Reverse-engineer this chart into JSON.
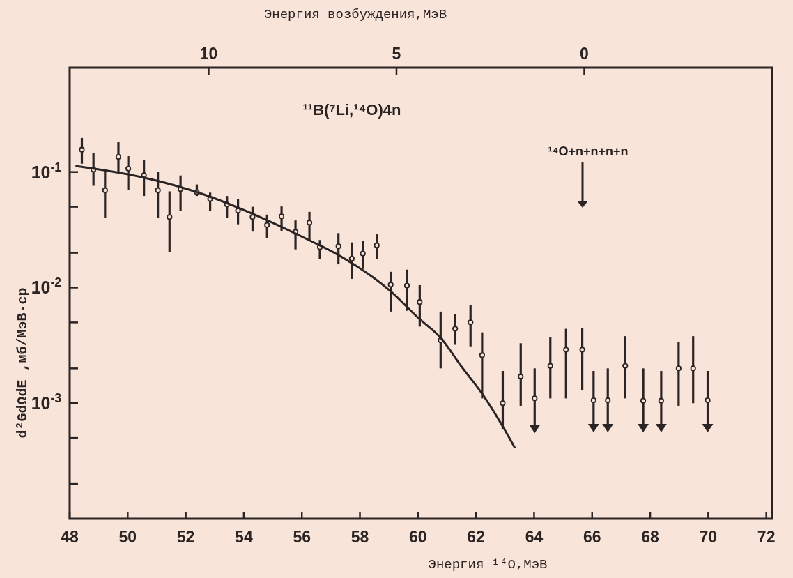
{
  "chart_data": {
    "type": "scatter",
    "xlabel": "Энергия ¹⁴O,МэВ",
    "x2label": "Энергия возбуждения,МэВ",
    "ylabel": "d²GdΩdE ,мб/МэВ·ср",
    "annotations": [
      "¹¹B(⁷Li,¹⁴O)4n",
      "¹⁴O+n+n+n+n"
    ],
    "log": "y",
    "xlim": [
      48,
      72.2
    ],
    "xticks": [
      48,
      50,
      52,
      54,
      56,
      58,
      60,
      62,
      64,
      66,
      68,
      70,
      72
    ],
    "x2lim": [
      13.7,
      -5.0
    ],
    "x2ticks": [
      10,
      5,
      0
    ],
    "ylim": [
      0.0001,
      0.8
    ],
    "yticks": [
      {
        "value": 0.1,
        "label": "10$^{-1}$"
      },
      {
        "value": 0.05,
        "label": null
      },
      {
        "value": 0.02,
        "label": null
      },
      {
        "value": 0.01,
        "label": "10$^{-2}$"
      },
      {
        "value": 0.005,
        "label": null
      },
      {
        "value": 0.002,
        "label": null
      },
      {
        "value": 0.001,
        "label": "10$^{-3}$"
      },
      {
        "value": 0.0005,
        "label": null
      },
      {
        "value": 0.0002,
        "label": null
      }
    ],
    "grid": false,
    "series": [
      {
        "color": "#2b2424",
        "marker": "circle",
        "x": [
          48.42,
          48.82,
          49.22,
          49.68,
          50.02,
          50.56,
          51.04,
          51.44,
          51.82,
          52.38,
          52.84,
          53.42,
          53.8,
          54.3,
          54.8,
          55.3,
          55.78,
          56.26,
          56.62,
          57.26,
          57.72,
          58.1,
          58.58,
          59.06,
          59.62,
          60.06,
          60.78,
          61.28,
          61.81,
          62.21,
          62.92,
          63.54,
          64.02,
          64.56,
          65.1,
          65.66,
          66.05,
          66.54,
          67.14,
          67.76,
          68.38,
          68.98,
          69.48,
          69.98
        ],
        "values": [
          0.156,
          0.105,
          0.0695,
          0.135,
          0.107,
          0.0937,
          0.0695,
          0.0408,
          0.0711,
          0.067,
          0.0583,
          0.0523,
          0.0463,
          0.0408,
          0.0348,
          0.0413,
          0.0303,
          0.0365,
          0.0224,
          0.0228,
          0.0178,
          0.0197,
          0.0232,
          0.0106,
          0.0104,
          0.0075,
          0.0035,
          0.0044,
          0.005,
          0.0026,
          0.001,
          0.0017,
          0.0011,
          0.0021,
          0.0029,
          0.0029,
          0.00106,
          0.00106,
          0.0021,
          0.00105,
          0.00105,
          0.002,
          0.002,
          0.00106
        ],
        "errors": [
          [
            0.118,
            0.197
          ],
          [
            0.076,
            0.147
          ],
          [
            0.04,
            0.103
          ],
          [
            0.1,
            0.181
          ],
          [
            0.07,
            0.137
          ],
          [
            0.062,
            0.126
          ],
          [
            0.04,
            0.0996
          ],
          [
            0.0204,
            0.068
          ],
          [
            0.0459,
            0.0933
          ],
          [
            0.062,
            0.078
          ],
          [
            0.0459,
            0.0663
          ],
          [
            0.0403,
            0.062
          ],
          [
            0.0353,
            0.058
          ],
          [
            0.0305,
            0.05
          ],
          [
            0.027,
            0.0428
          ],
          [
            0.0307,
            0.0503
          ],
          [
            0.0214,
            0.0381
          ],
          [
            0.0258,
            0.0452
          ],
          [
            0.0176,
            0.0258
          ],
          [
            0.0159,
            0.0296
          ],
          [
            0.0119,
            0.0246
          ],
          [
            0.0145,
            0.0255
          ],
          [
            0.0176,
            0.0289
          ],
          [
            0.0062,
            0.0137
          ],
          [
            0.0063,
            0.0143
          ],
          [
            0.0046,
            0.0105
          ],
          [
            0.002,
            0.0062
          ],
          [
            0.0032,
            0.0059
          ],
          [
            0.0031,
            0.0071
          ],
          [
            0.0011,
            0.0041
          ],
          [
            0.0006,
            0.0019
          ],
          [
            0.00095,
            0.0033
          ],
          [
            0.00059,
            0.002
          ],
          [
            0.0011,
            0.0037
          ],
          [
            0.0011,
            0.0044
          ],
          [
            0.0013,
            0.0045
          ],
          [
            0.0006,
            0.0019
          ],
          [
            0.0006,
            0.002
          ],
          [
            0.0011,
            0.0038
          ],
          [
            0.0006,
            0.002
          ],
          [
            0.0006,
            0.0019
          ],
          [
            0.00095,
            0.0034
          ],
          [
            0.001,
            0.0038
          ],
          [
            0.0006,
            0.0019
          ]
        ]
      },
      {
        "color": "#2b2424",
        "marker": "triangle",
        "x": [
          64.02,
          66.05,
          66.54,
          67.76,
          68.38,
          69.98
        ],
        "values": [
          0.00059,
          0.0006,
          0.0006,
          0.0006,
          0.0006,
          0.0006
        ]
      },
      {
        "type": "line",
        "color": "#2b2424",
        "line_style": "solid",
        "marker": "none",
        "x": [
          48.2,
          50.56,
          52.38,
          54.72,
          56.24,
          57.26,
          59.04,
          60.0,
          60.8,
          61.52,
          62.24,
          62.92,
          63.34
        ],
        "values": [
          0.113,
          0.0895,
          0.067,
          0.0391,
          0.0258,
          0.0191,
          0.00936,
          0.0055,
          0.00363,
          0.00204,
          0.00118,
          0.00063,
          0.00041
        ]
      }
    ]
  }
}
